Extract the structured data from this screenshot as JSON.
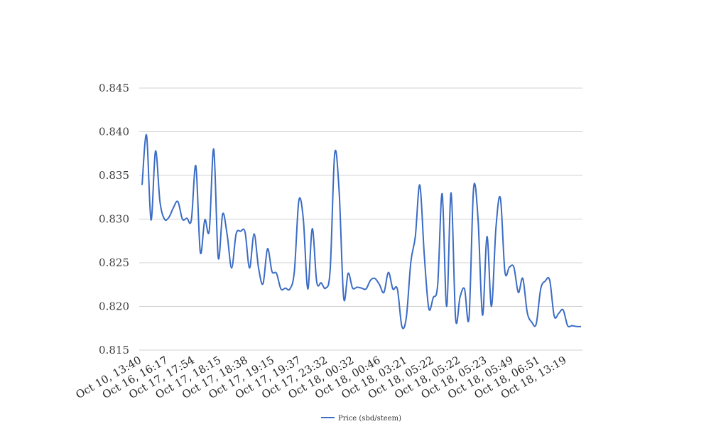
{
  "chart_data": {
    "type": "line",
    "title": "",
    "xlabel": "",
    "ylabel": "",
    "ylim": [
      0.815,
      0.845
    ],
    "yticks": [
      "0.815",
      "0.820",
      "0.825",
      "0.830",
      "0.835",
      "0.840",
      "0.845"
    ],
    "grid": "horizontal",
    "legend_position": "bottom",
    "x_tick_labels": [
      "Oct 10, 13:40",
      "Oct 16, 16:17",
      "Oct 17, 17:54",
      "Oct 17, 18:15",
      "Oct 17, 18:38",
      "Oct 17, 19:15",
      "Oct 17, 19:37",
      "Oct 17, 23:32",
      "Oct 18, 00:32",
      "Oct 18, 00:46",
      "Oct 18, 03:21",
      "Oct 18, 05:22",
      "Oct 18, 05:22",
      "Oct 18, 05:23",
      "Oct 18, 05:49",
      "Oct 18, 06:51",
      "Oct 18, 13:19"
    ],
    "series": [
      {
        "name": "Price (sbd/steem)",
        "color": "#3b6cc4",
        "values": [
          0.8339,
          0.8396,
          0.8299,
          0.8378,
          0.832,
          0.83,
          0.8302,
          0.8313,
          0.832,
          0.83,
          0.8301,
          0.8299,
          0.8361,
          0.8262,
          0.8299,
          0.8287,
          0.838,
          0.8256,
          0.8306,
          0.8282,
          0.8244,
          0.8283,
          0.8286,
          0.8285,
          0.8244,
          0.8283,
          0.8244,
          0.8226,
          0.8266,
          0.824,
          0.8238,
          0.822,
          0.8221,
          0.822,
          0.824,
          0.8321,
          0.83,
          0.822,
          0.8289,
          0.8228,
          0.8227,
          0.8221,
          0.8243,
          0.8375,
          0.8331,
          0.821,
          0.8238,
          0.8221,
          0.8222,
          0.8221,
          0.822,
          0.823,
          0.8232,
          0.8225,
          0.8216,
          0.8239,
          0.822,
          0.822,
          0.8177,
          0.8188,
          0.8251,
          0.828,
          0.8339,
          0.8259,
          0.8198,
          0.821,
          0.8225,
          0.8329,
          0.82,
          0.833,
          0.8186,
          0.8211,
          0.822,
          0.8187,
          0.8335,
          0.83,
          0.819,
          0.828,
          0.82,
          0.829,
          0.8324,
          0.824,
          0.8245,
          0.8245,
          0.8216,
          0.8232,
          0.8193,
          0.8182,
          0.818,
          0.822,
          0.8229,
          0.823,
          0.8189,
          0.8192,
          0.8196,
          0.8178,
          0.8178,
          0.8177,
          0.8177
        ]
      }
    ]
  }
}
